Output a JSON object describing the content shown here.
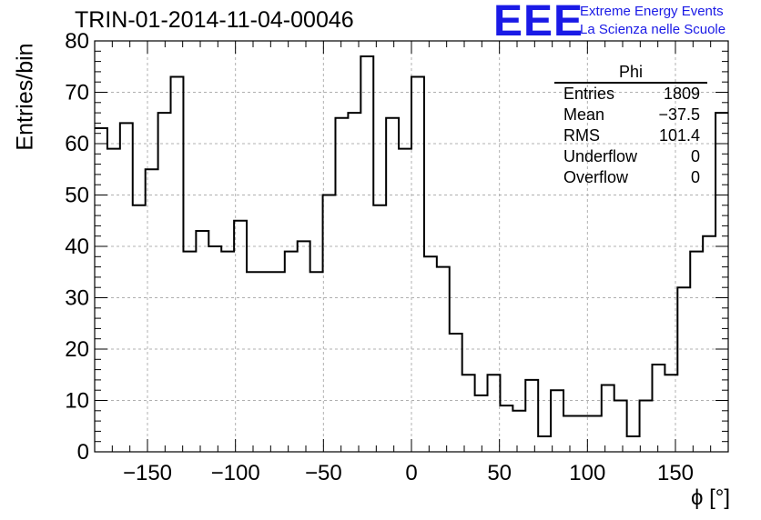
{
  "title": "TRIN-01-2014-11-04-00046",
  "logo": {
    "mark": "EEE",
    "line1": "Extreme Energy Events",
    "line2": "La Scienza nelle Scuole",
    "color": "#1a1ae6"
  },
  "stats_box": {
    "header": "Phi",
    "rows": [
      {
        "label": "Entries",
        "value": "1809"
      },
      {
        "label": "Mean",
        "value": "−37.5"
      },
      {
        "label": "RMS",
        "value": "101.4"
      },
      {
        "label": "Underflow",
        "value": "0"
      },
      {
        "label": "Overflow",
        "value": "0"
      }
    ]
  },
  "chart_data": {
    "type": "bar",
    "histogram": true,
    "title": "TRIN-01-2014-11-04-00046",
    "xlabel": "ϕ [°]",
    "ylabel": "Entries/bin",
    "xlim": [
      -180,
      180
    ],
    "ylim": [
      0,
      80
    ],
    "bin_width": 7.2,
    "x_ticks": [
      -150,
      -100,
      -50,
      0,
      50,
      100,
      150
    ],
    "x_tick_labels": [
      "−150",
      "−100",
      "−50",
      "0",
      "50",
      "100",
      "150"
    ],
    "y_ticks": [
      0,
      10,
      20,
      30,
      40,
      50,
      60,
      70,
      80
    ],
    "y_tick_labels": [
      "0",
      "10",
      "20",
      "30",
      "40",
      "50",
      "60",
      "70",
      "80"
    ],
    "grid": true,
    "values": [
      63,
      59,
      64,
      48,
      55,
      66,
      73,
      39,
      43,
      40,
      39,
      45,
      35,
      35,
      35,
      39,
      41,
      35,
      50,
      65,
      66,
      77,
      48,
      65,
      59,
      73,
      38,
      36,
      23,
      15,
      11,
      15,
      9,
      8,
      14,
      3,
      12,
      7,
      7,
      7,
      13,
      10,
      3,
      10,
      17,
      15,
      32,
      39,
      42,
      66
    ],
    "line_color": "#000000"
  }
}
